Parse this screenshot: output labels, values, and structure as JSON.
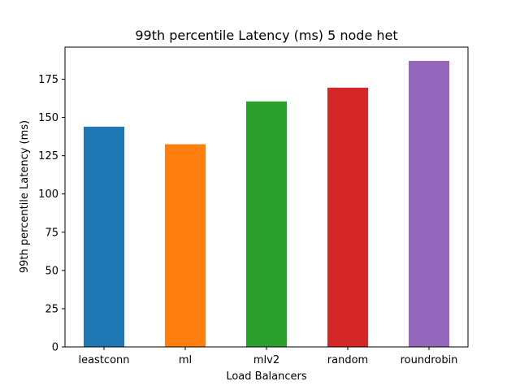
{
  "chart_data": {
    "type": "bar",
    "title": "99th percentile Latency (ms) 5 node het",
    "xlabel": "Load Balancers",
    "ylabel": "99th percentile Latency (ms)",
    "categories": [
      "leastconn",
      "ml",
      "mlv2",
      "random",
      "roundrobin"
    ],
    "values": [
      144,
      132.5,
      160.5,
      169.5,
      187
    ],
    "colors": [
      "#1f77b4",
      "#ff7f0e",
      "#2ca02c",
      "#d62728",
      "#9467bd"
    ],
    "ylim": [
      0,
      196
    ],
    "yticks": [
      0,
      25,
      50,
      75,
      100,
      125,
      150,
      175
    ],
    "grid": false,
    "legend": "none"
  }
}
